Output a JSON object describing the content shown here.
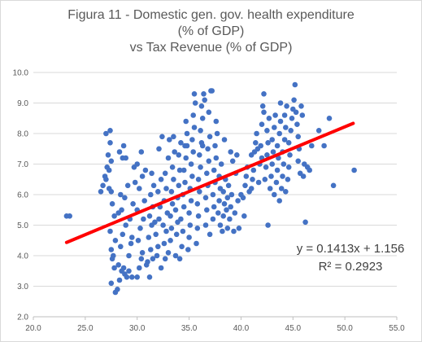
{
  "chart_data": {
    "type": "scatter",
    "title_lines": [
      "Figura 11 - Domestic gen. gov. health expenditure",
      "(% of GDP)",
      "vs Tax Revenue (% of GDP)"
    ],
    "xlabel": "",
    "ylabel": "",
    "xlim": [
      20,
      55
    ],
    "ylim": [
      2,
      10
    ],
    "x_ticks": [
      20,
      25,
      30,
      35,
      40,
      45,
      50,
      55
    ],
    "y_ticks": [
      2,
      3,
      4,
      5,
      6,
      7,
      8,
      9,
      10
    ],
    "x_tick_labels": [
      "20.0",
      "25.0",
      "30.0",
      "35.0",
      "40.0",
      "45.0",
      "50.0",
      "55.0"
    ],
    "y_tick_labels": [
      "2.0",
      "3.0",
      "4.0",
      "5.0",
      "6.0",
      "7.0",
      "8.0",
      "9.0",
      "10.0"
    ],
    "grid": "horizontal",
    "legend": "none",
    "marker_color": "#4472c4",
    "trendline_color": "#ff0000",
    "trendline": {
      "slope": 0.1413,
      "intercept": 1.156,
      "x_range": [
        23.2,
        50.8
      ]
    },
    "annotations": [
      "y = 0.1413x + 1.156",
      "R² = 0.2923"
    ],
    "points": [
      [
        23.2,
        5.3
      ],
      [
        23.5,
        5.3
      ],
      [
        26.5,
        6.1
      ],
      [
        26.7,
        6.3
      ],
      [
        26.9,
        6.6
      ],
      [
        27.0,
        6.5
      ],
      [
        27.1,
        6.9
      ],
      [
        27.2,
        7.3
      ],
      [
        27.3,
        6.8
      ],
      [
        27.4,
        7.7
      ],
      [
        27.5,
        7.1
      ],
      [
        27.3,
        6.2
      ],
      [
        27.0,
        8.0
      ],
      [
        27.4,
        8.1
      ],
      [
        27.5,
        6.1
      ],
      [
        27.6,
        5.7
      ],
      [
        27.8,
        5.3
      ],
      [
        27.4,
        4.8
      ],
      [
        27.5,
        4.2
      ],
      [
        27.7,
        4.0
      ],
      [
        27.9,
        4.5
      ],
      [
        27.6,
        3.9
      ],
      [
        27.8,
        3.6
      ],
      [
        27.5,
        3.1
      ],
      [
        27.9,
        2.8
      ],
      [
        28.1,
        2.9
      ],
      [
        28.3,
        3.2
      ],
      [
        28.5,
        3.5
      ],
      [
        28.7,
        3.6
      ],
      [
        28.2,
        3.7
      ],
      [
        28.8,
        3.4
      ],
      [
        29.0,
        3.3
      ],
      [
        29.2,
        3.5
      ],
      [
        28.4,
        4.3
      ],
      [
        28.6,
        4.7
      ],
      [
        28.9,
        5.0
      ],
      [
        28.2,
        5.4
      ],
      [
        28.5,
        5.5
      ],
      [
        28.8,
        5.9
      ],
      [
        29.1,
        6.3
      ],
      [
        28.4,
        6.0
      ],
      [
        28.6,
        7.2
      ],
      [
        28.9,
        7.2
      ],
      [
        28.3,
        7.4
      ],
      [
        28.7,
        7.6
      ],
      [
        29.2,
        4.0
      ],
      [
        29.4,
        4.4
      ],
      [
        29.5,
        4.6
      ],
      [
        29.3,
        5.2
      ],
      [
        29.6,
        5.7
      ],
      [
        29.8,
        6.4
      ],
      [
        29.7,
        6.9
      ],
      [
        29.5,
        3.3
      ],
      [
        30.0,
        3.3
      ],
      [
        30.2,
        3.6
      ],
      [
        30.4,
        3.9
      ],
      [
        30.5,
        4.1
      ],
      [
        30.1,
        4.5
      ],
      [
        30.3,
        4.9
      ],
      [
        30.6,
        5.2
      ],
      [
        30.0,
        5.5
      ],
      [
        30.7,
        5.8
      ],
      [
        30.2,
        6.2
      ],
      [
        30.5,
        6.6
      ],
      [
        30.8,
        6.8
      ],
      [
        30.0,
        7.0
      ],
      [
        30.4,
        7.4
      ],
      [
        30.9,
        3.7
      ],
      [
        31.0,
        3.8
      ],
      [
        31.2,
        3.3
      ],
      [
        31.3,
        4.2
      ],
      [
        31.1,
        4.6
      ],
      [
        31.4,
        5.0
      ],
      [
        31.2,
        5.3
      ],
      [
        31.5,
        5.6
      ],
      [
        31.3,
        6.0
      ],
      [
        31.6,
        6.3
      ],
      [
        31.4,
        6.7
      ],
      [
        31.7,
        5.1
      ],
      [
        31.8,
        4.7
      ],
      [
        31.9,
        4.0
      ],
      [
        31.5,
        3.9
      ],
      [
        32.0,
        4.3
      ],
      [
        32.1,
        5.2
      ],
      [
        32.2,
        5.6
      ],
      [
        32.0,
        6.1
      ],
      [
        32.3,
        6.5
      ],
      [
        32.1,
        7.5
      ],
      [
        32.4,
        7.9
      ],
      [
        32.5,
        5.0
      ],
      [
        32.6,
        4.4
      ],
      [
        32.3,
        3.6
      ],
      [
        32.7,
        3.9
      ],
      [
        32.8,
        4.8
      ],
      [
        32.9,
        5.4
      ],
      [
        32.6,
        5.8
      ],
      [
        32.8,
        6.2
      ],
      [
        32.7,
        6.7
      ],
      [
        33.0,
        7.2
      ],
      [
        33.1,
        7.8
      ],
      [
        33.0,
        4.1
      ],
      [
        33.2,
        4.5
      ],
      [
        33.3,
        4.9
      ],
      [
        33.2,
        5.3
      ],
      [
        33.4,
        5.7
      ],
      [
        33.3,
        6.1
      ],
      [
        33.5,
        6.5
      ],
      [
        33.4,
        6.9
      ],
      [
        33.6,
        7.4
      ],
      [
        33.5,
        7.9
      ],
      [
        33.7,
        4.0
      ],
      [
        33.8,
        4.7
      ],
      [
        33.9,
        5.1
      ],
      [
        33.7,
        5.5
      ],
      [
        33.9,
        5.9
      ],
      [
        34.0,
        6.3
      ],
      [
        34.1,
        6.8
      ],
      [
        34.0,
        7.3
      ],
      [
        34.2,
        7.7
      ],
      [
        34.1,
        3.9
      ],
      [
        34.3,
        4.3
      ],
      [
        34.4,
        4.8
      ],
      [
        34.2,
        5.2
      ],
      [
        34.5,
        5.6
      ],
      [
        34.4,
        6.0
      ],
      [
        34.6,
        6.4
      ],
      [
        34.5,
        6.8
      ],
      [
        34.7,
        7.2
      ],
      [
        34.6,
        7.6
      ],
      [
        34.8,
        8.0
      ],
      [
        34.7,
        8.4
      ],
      [
        34.9,
        4.2
      ],
      [
        35.0,
        4.6
      ],
      [
        35.1,
        5.0
      ],
      [
        35.0,
        5.4
      ],
      [
        35.2,
        5.8
      ],
      [
        35.1,
        6.2
      ],
      [
        35.3,
        6.6
      ],
      [
        35.2,
        7.0
      ],
      [
        35.4,
        7.4
      ],
      [
        35.3,
        7.8
      ],
      [
        35.5,
        8.2
      ],
      [
        35.4,
        8.6
      ],
      [
        35.6,
        9.0
      ],
      [
        35.5,
        9.3
      ],
      [
        35.7,
        4.4
      ],
      [
        35.8,
        4.9
      ],
      [
        35.9,
        5.3
      ],
      [
        35.8,
        5.7
      ],
      [
        36.0,
        6.1
      ],
      [
        35.9,
        6.5
      ],
      [
        36.1,
        6.9
      ],
      [
        36.0,
        7.3
      ],
      [
        36.2,
        7.7
      ],
      [
        36.1,
        8.1
      ],
      [
        36.3,
        8.5
      ],
      [
        36.2,
        8.9
      ],
      [
        36.4,
        9.3
      ],
      [
        36.5,
        9.1
      ],
      [
        36.6,
        5.0
      ],
      [
        36.7,
        5.5
      ],
      [
        36.6,
        5.9
      ],
      [
        36.8,
        6.3
      ],
      [
        36.7,
        6.7
      ],
      [
        36.9,
        7.1
      ],
      [
        36.8,
        7.5
      ],
      [
        37.0,
        7.9
      ],
      [
        36.9,
        8.7
      ],
      [
        37.1,
        9.4
      ],
      [
        37.2,
        9.4
      ],
      [
        37.0,
        4.7
      ],
      [
        37.3,
        5.2
      ],
      [
        37.4,
        5.6
      ],
      [
        37.3,
        6.0
      ],
      [
        37.5,
        6.4
      ],
      [
        37.4,
        6.8
      ],
      [
        37.6,
        7.2
      ],
      [
        37.5,
        7.6
      ],
      [
        37.7,
        8.0
      ],
      [
        37.6,
        8.4
      ],
      [
        37.8,
        5.4
      ],
      [
        37.9,
        5.8
      ],
      [
        38.0,
        6.2
      ],
      [
        37.9,
        6.6
      ],
      [
        38.1,
        7.0
      ],
      [
        38.0,
        5.0
      ],
      [
        38.2,
        4.8
      ],
      [
        38.3,
        5.3
      ],
      [
        38.4,
        5.7
      ],
      [
        38.3,
        6.1
      ],
      [
        38.5,
        6.5
      ],
      [
        38.4,
        7.8
      ],
      [
        38.6,
        5.5
      ],
      [
        38.7,
        5.9
      ],
      [
        38.8,
        6.3
      ],
      [
        38.7,
        4.9
      ],
      [
        38.9,
        5.2
      ],
      [
        39.0,
        5.6
      ],
      [
        39.1,
        6.0
      ],
      [
        39.0,
        7.4
      ],
      [
        39.2,
        7.1
      ],
      [
        39.3,
        4.8
      ],
      [
        39.4,
        5.4
      ],
      [
        39.5,
        6.7
      ],
      [
        39.6,
        7.3
      ],
      [
        39.7,
        5.8
      ],
      [
        40.0,
        6.0
      ],
      [
        40.2,
        5.9
      ],
      [
        40.4,
        6.3
      ],
      [
        40.5,
        6.6
      ],
      [
        40.6,
        6.9
      ],
      [
        40.8,
        6.1
      ],
      [
        41.0,
        7.3
      ],
      [
        41.1,
        6.5
      ],
      [
        41.2,
        6.8
      ],
      [
        41.3,
        7.4
      ],
      [
        41.4,
        7.7
      ],
      [
        41.5,
        8.0
      ],
      [
        41.6,
        7.5
      ],
      [
        41.7,
        6.4
      ],
      [
        41.8,
        7.0
      ],
      [
        41.9,
        7.6
      ],
      [
        42.0,
        7.2
      ],
      [
        42.0,
        8.3
      ],
      [
        42.1,
        8.9
      ],
      [
        42.2,
        9.3
      ],
      [
        42.3,
        6.5
      ],
      [
        42.4,
        6.9
      ],
      [
        42.5,
        7.3
      ],
      [
        42.6,
        7.7
      ],
      [
        42.5,
        8.1
      ],
      [
        42.7,
        8.5
      ],
      [
        42.8,
        6.2
      ],
      [
        42.9,
        6.6
      ],
      [
        43.0,
        7.0
      ],
      [
        43.1,
        7.4
      ],
      [
        43.0,
        7.8
      ],
      [
        43.2,
        8.2
      ],
      [
        43.3,
        8.6
      ],
      [
        43.2,
        6.0
      ],
      [
        43.4,
        6.4
      ],
      [
        43.5,
        6.8
      ],
      [
        43.6,
        7.2
      ],
      [
        43.5,
        7.6
      ],
      [
        43.7,
        8.0
      ],
      [
        43.8,
        8.4
      ],
      [
        43.7,
        5.8
      ],
      [
        43.9,
        6.2
      ],
      [
        44.0,
        6.6
      ],
      [
        44.1,
        7.0
      ],
      [
        44.0,
        7.4
      ],
      [
        44.2,
        7.8
      ],
      [
        44.3,
        8.2
      ],
      [
        44.2,
        8.6
      ],
      [
        44.4,
        8.9
      ],
      [
        44.5,
        6.5
      ],
      [
        44.6,
        6.9
      ],
      [
        44.7,
        7.3
      ],
      [
        44.6,
        7.7
      ],
      [
        44.8,
        8.1
      ],
      [
        44.9,
        8.5
      ],
      [
        45.0,
        8.8
      ],
      [
        45.1,
        9.1
      ],
      [
        45.2,
        9.6
      ],
      [
        45.3,
        8.7
      ],
      [
        45.4,
        8.3
      ],
      [
        45.5,
        7.9
      ],
      [
        45.6,
        7.5
      ],
      [
        45.5,
        7.1
      ],
      [
        45.7,
        6.7
      ],
      [
        45.8,
        8.9
      ],
      [
        45.9,
        8.6
      ],
      [
        46.0,
        6.6
      ],
      [
        46.1,
        7.0
      ],
      [
        46.2,
        5.1
      ],
      [
        46.4,
        6.9
      ],
      [
        46.6,
        6.8
      ],
      [
        46.8,
        7.6
      ],
      [
        47.5,
        8.1
      ],
      [
        48.0,
        7.6
      ],
      [
        48.5,
        8.5
      ],
      [
        48.9,
        6.3
      ],
      [
        50.9,
        6.8
      ],
      [
        42.6,
        5.0
      ],
      [
        40.3,
        5.3
      ],
      [
        39.8,
        4.9
      ],
      [
        41.0,
        6.2
      ],
      [
        44.3,
        6.1
      ],
      [
        42.2,
        8.7
      ],
      [
        43.8,
        9.0
      ],
      [
        36.3,
        7.6
      ],
      [
        34.8,
        7.6
      ]
    ]
  }
}
